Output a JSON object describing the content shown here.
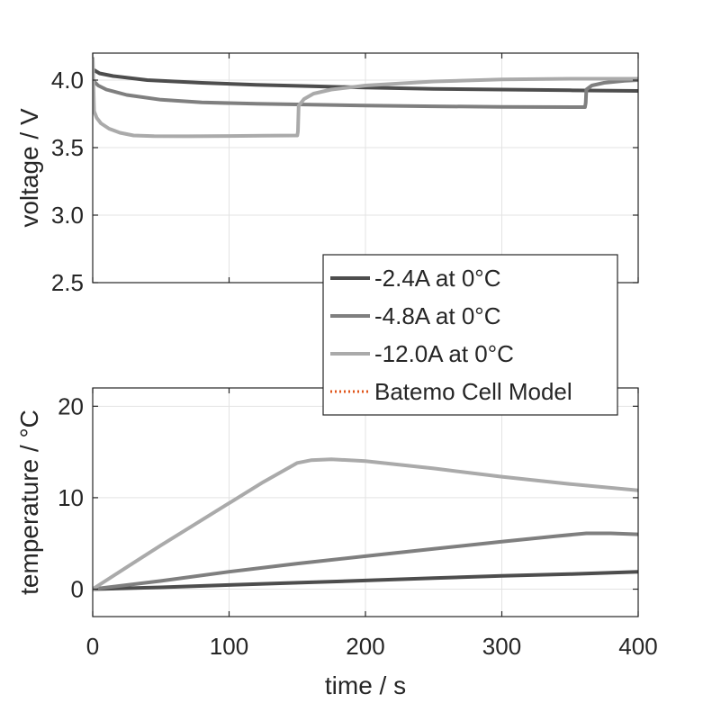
{
  "chart_data": [
    {
      "type": "line",
      "id": "voltage",
      "ylabel": "voltage / V",
      "xlabel": "",
      "xlim": [
        0,
        400
      ],
      "ylim": [
        2.5,
        4.2
      ],
      "grid": true,
      "xticks": [
        0,
        100,
        200,
        300,
        400
      ],
      "xtick_labels": [],
      "yticks": [
        2.5,
        3.0,
        3.5,
        4.0
      ],
      "ytick_labels": [
        "2.5",
        "3.0",
        "3.5",
        "4.0"
      ],
      "series": [
        {
          "name": "-2.4A at 0°C",
          "color": "#4d4d4d",
          "points": [
            [
              0,
              4.08
            ],
            [
              5,
              4.05
            ],
            [
              15,
              4.03
            ],
            [
              40,
              4.0
            ],
            [
              80,
              3.98
            ],
            [
              120,
              3.965
            ],
            [
              160,
              3.955
            ],
            [
              200,
              3.945
            ],
            [
              250,
              3.935
            ],
            [
              300,
              3.93
            ],
            [
              350,
              3.925
            ],
            [
              400,
              3.92
            ]
          ]
        },
        {
          "name": "-4.8A at 0°C",
          "color": "#7f7f7f",
          "points": [
            [
              0,
              4.0
            ],
            [
              4,
              3.96
            ],
            [
              10,
              3.93
            ],
            [
              25,
              3.89
            ],
            [
              50,
              3.855
            ],
            [
              80,
              3.835
            ],
            [
              120,
              3.825
            ],
            [
              160,
              3.818
            ],
            [
              200,
              3.812
            ],
            [
              250,
              3.806
            ],
            [
              300,
              3.802
            ],
            [
              361,
              3.8
            ],
            [
              361.5,
              3.83
            ],
            [
              362,
              3.93
            ],
            [
              366,
              3.96
            ],
            [
              375,
              3.98
            ],
            [
              390,
              3.995
            ],
            [
              400,
              4.0
            ]
          ]
        },
        {
          "name": "-12.0A at 0°C",
          "color": "#aaaaaa",
          "points": [
            [
              0,
              4.17
            ],
            [
              1,
              3.77
            ],
            [
              3,
              3.72
            ],
            [
              6,
              3.68
            ],
            [
              12,
              3.64
            ],
            [
              20,
              3.61
            ],
            [
              30,
              3.59
            ],
            [
              45,
              3.585
            ],
            [
              70,
              3.584
            ],
            [
              100,
              3.586
            ],
            [
              125,
              3.588
            ],
            [
              150,
              3.59
            ],
            [
              150.5,
              3.62
            ],
            [
              151,
              3.81
            ],
            [
              155,
              3.86
            ],
            [
              162,
              3.9
            ],
            [
              175,
              3.93
            ],
            [
              200,
              3.96
            ],
            [
              250,
              3.99
            ],
            [
              300,
              4.005
            ],
            [
              350,
              4.01
            ],
            [
              400,
              4.01
            ]
          ]
        },
        {
          "name": "Batemo Cell Model",
          "color": "#e0561b",
          "dotted": true,
          "points": []
        }
      ]
    },
    {
      "type": "line",
      "id": "temperature",
      "ylabel": "temperature / °C",
      "xlabel": "time / s",
      "xlim": [
        0,
        400
      ],
      "ylim": [
        -3,
        22
      ],
      "grid": true,
      "xticks": [
        0,
        100,
        200,
        300,
        400
      ],
      "xtick_labels": [
        "0",
        "100",
        "200",
        "300",
        "400"
      ],
      "yticks": [
        0,
        10,
        20
      ],
      "ytick_labels": [
        "0",
        "10",
        "20"
      ],
      "series": [
        {
          "name": "-2.4A at 0°C",
          "color": "#4d4d4d",
          "points": [
            [
              0,
              0
            ],
            [
              50,
              0.2
            ],
            [
              100,
              0.45
            ],
            [
              150,
              0.7
            ],
            [
              200,
              0.95
            ],
            [
              250,
              1.2
            ],
            [
              300,
              1.45
            ],
            [
              350,
              1.65
            ],
            [
              400,
              1.9
            ]
          ]
        },
        {
          "name": "-4.8A at 0°C",
          "color": "#7f7f7f",
          "points": [
            [
              0,
              0
            ],
            [
              50,
              0.9
            ],
            [
              100,
              1.9
            ],
            [
              150,
              2.8
            ],
            [
              200,
              3.6
            ],
            [
              250,
              4.4
            ],
            [
              300,
              5.2
            ],
            [
              340,
              5.8
            ],
            [
              362,
              6.1
            ],
            [
              380,
              6.1
            ],
            [
              400,
              6.0
            ]
          ]
        },
        {
          "name": "-12.0A at 0°C",
          "color": "#aaaaaa",
          "points": [
            [
              0,
              0
            ],
            [
              25,
              2.4
            ],
            [
              50,
              4.8
            ],
            [
              75,
              7.1
            ],
            [
              100,
              9.4
            ],
            [
              125,
              11.7
            ],
            [
              150,
              13.8
            ],
            [
              160,
              14.1
            ],
            [
              175,
              14.2
            ],
            [
              200,
              14.0
            ],
            [
              250,
              13.2
            ],
            [
              300,
              12.3
            ],
            [
              350,
              11.5
            ],
            [
              400,
              10.8
            ]
          ]
        }
      ]
    }
  ],
  "legend": {
    "entries": [
      {
        "label": "-2.4A at 0°C",
        "color": "#4d4d4d",
        "dotted": false
      },
      {
        "label": "-4.8A at 0°C",
        "color": "#7f7f7f",
        "dotted": false
      },
      {
        "label": "-12.0A at 0°C",
        "color": "#aaaaaa",
        "dotted": false
      },
      {
        "label": "Batemo Cell Model",
        "color": "#e0561b",
        "dotted": true
      }
    ]
  }
}
